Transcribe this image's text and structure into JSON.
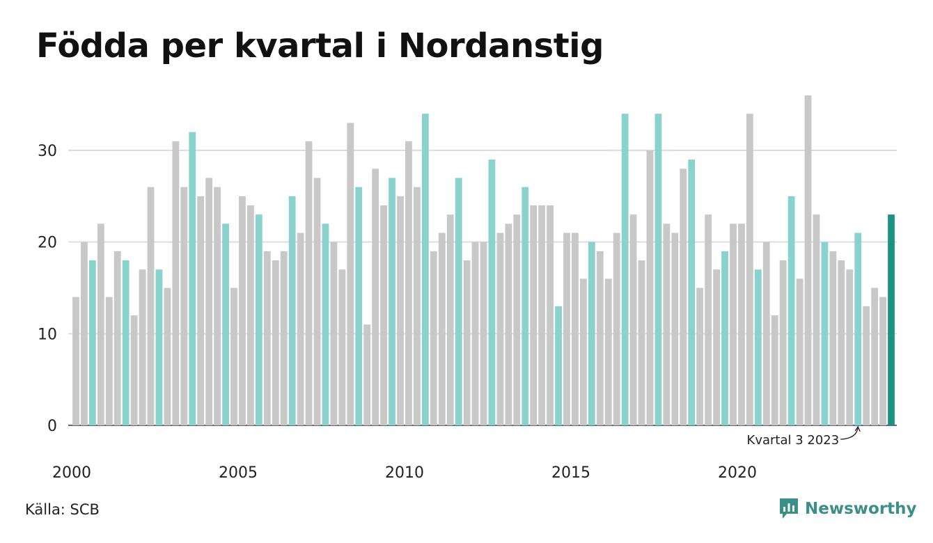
{
  "title": "Födda per kvartal i Nordanstig",
  "source": "Källa: SCB",
  "brand": "Newsworthy",
  "colors": {
    "bar_default": "#c8c8c8",
    "bar_quarter3": "#8ad3cc",
    "bar_latest": "#1a9384",
    "grid": "#dddddd",
    "baseline": "#333333",
    "brand": "#3a8f86"
  },
  "chart_data": {
    "type": "bar",
    "start_year": 2000,
    "start_quarter": 1,
    "values": [
      14,
      20,
      18,
      22,
      14,
      19,
      18,
      12,
      17,
      26,
      17,
      15,
      31,
      26,
      32,
      25,
      27,
      26,
      22,
      15,
      25,
      24,
      23,
      19,
      18,
      19,
      25,
      21,
      31,
      27,
      22,
      20,
      17,
      33,
      26,
      11,
      28,
      24,
      27,
      25,
      31,
      26,
      34,
      19,
      21,
      23,
      27,
      18,
      20,
      20,
      29,
      21,
      22,
      23,
      26,
      24,
      24,
      24,
      13,
      21,
      21,
      16,
      20,
      19,
      16,
      21,
      34,
      23,
      18,
      30,
      34,
      22,
      21,
      28,
      29,
      15,
      23,
      17,
      19,
      22,
      22,
      34,
      17,
      20,
      12,
      18,
      25,
      16,
      36,
      23,
      20,
      19,
      18,
      17,
      21,
      13,
      15,
      14,
      23
    ],
    "highlight_quarter": 3,
    "y_ticks": [
      0,
      10,
      20,
      30
    ],
    "ylim": [
      0,
      36
    ],
    "x_ticks": [
      "2000",
      "2005",
      "2010",
      "2015",
      "2020"
    ],
    "grid": true,
    "annotation": "Kvartal 3 2023"
  }
}
